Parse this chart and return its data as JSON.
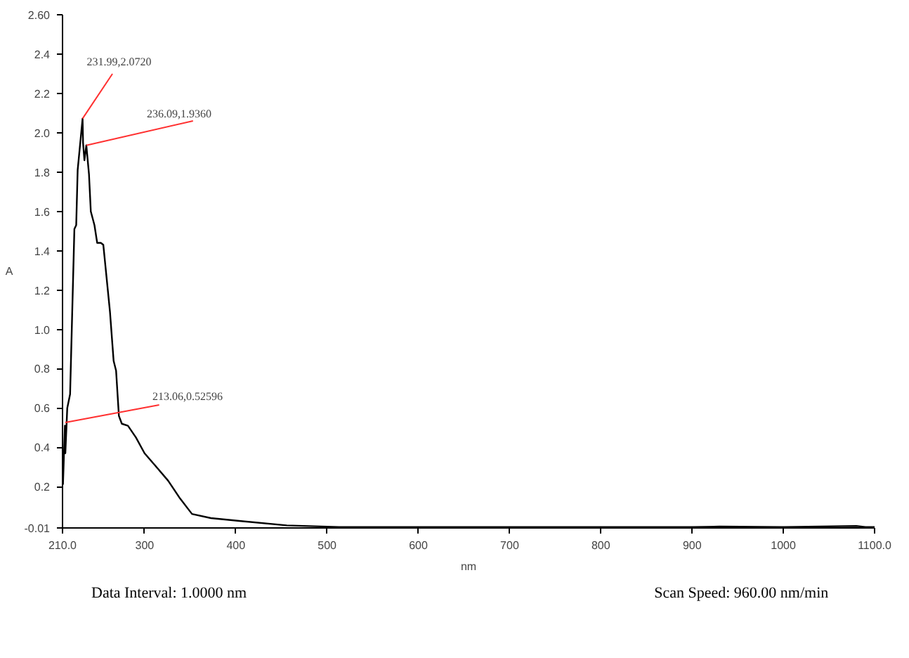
{
  "chart_data": {
    "type": "line",
    "xlabel": "nm",
    "ylabel": "A",
    "x": [
      210.5,
      212.6,
      213.1,
      215.2,
      218.3,
      223,
      225,
      226.6,
      231.99,
      232.5,
      234,
      236.09,
      239,
      241,
      245,
      248,
      252,
      254.7,
      262,
      266,
      268.7,
      271.8,
      275,
      281.7,
      290.5,
      299.9,
      312.9,
      325.8,
      338.8,
      351.9,
      372.6,
      403.7,
      455.8,
      512.9,
      600,
      700,
      800,
      900,
      930,
      1000,
      1080,
      1090,
      1100
    ],
    "series": [
      {
        "color": "#000000",
        "values": [
          0.21,
          0.51,
          0.37,
          0.6,
          0.67,
          1.51,
          1.53,
          1.81,
          2.072,
          1.95,
          1.86,
          1.936,
          1.79,
          1.6,
          1.53,
          1.44,
          1.44,
          1.43,
          1.09,
          0.84,
          0.79,
          0.56,
          0.52,
          0.51,
          0.45,
          0.37,
          0.3,
          0.23,
          0.14,
          0.061,
          0.04,
          0.026,
          0.003,
          -0.005,
          -0.005,
          -0.005,
          -0.005,
          -0.005,
          -0.003,
          -0.005,
          0.0,
          -0.005,
          -0.005
        ]
      }
    ],
    "xlim": [
      210,
      1100
    ],
    "ylim": [
      -0.01,
      2.6
    ],
    "xticks": [
      {
        "value": 210,
        "label": "210.0"
      },
      300,
      400,
      500,
      600,
      700,
      800,
      900,
      1000,
      {
        "value": 1100,
        "label": "1100.0"
      }
    ],
    "yticks": [
      -0.01,
      0.2,
      0.4,
      0.6,
      0.8,
      {
        "value": 1.0,
        "label": "1.0"
      },
      1.2,
      1.4,
      1.6,
      1.8,
      {
        "value": 2.0,
        "label": "2.0"
      },
      2.2,
      2.4,
      {
        "value": 2.6,
        "label": "2.60"
      }
    ],
    "grid": false,
    "annotations": [
      {
        "text": "231.99,2.0720",
        "x": 231.99,
        "y": 2.072
      },
      {
        "text": "236.09,1.9360",
        "x": 236.09,
        "y": 1.936
      },
      {
        "text": "213.06,0.52596",
        "x": 213.06,
        "y": 0.52596
      },
      "Data Interval: 1.0000 nm",
      "Scan Speed: 960.00 nm/min"
    ]
  }
}
